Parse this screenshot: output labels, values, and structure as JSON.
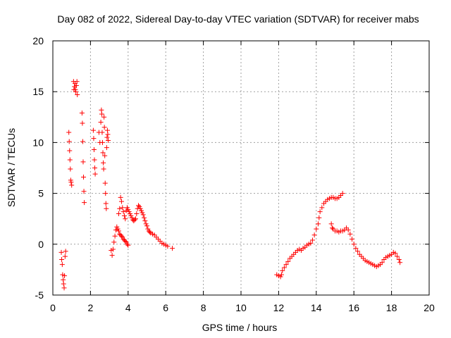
{
  "chart_data": {
    "type": "scatter",
    "title": "Day 082 of 2022, Sidereal Day-to-day VTEC variation (SDTVAR) for receiver mabs",
    "xlabel": "GPS time / hours",
    "ylabel": "SDTVAR / TECUs",
    "xlim": [
      0,
      20
    ],
    "ylim": [
      -5,
      20
    ],
    "x_ticks": [
      "0",
      "2",
      "4",
      "6",
      "8",
      "10",
      "12",
      "14",
      "16",
      "18",
      "20"
    ],
    "y_ticks": [
      "-5",
      "0",
      "5",
      "10",
      "15",
      "20"
    ],
    "grid": true,
    "legend": "none",
    "marker": "+",
    "color": "#ff0000",
    "series": [
      {
        "name": "SDTVAR",
        "points": [
          [
            0.45,
            -0.8
          ],
          [
            0.47,
            -1.5
          ],
          [
            0.5,
            -2.0
          ],
          [
            0.52,
            -3.0
          ],
          [
            0.55,
            -3.5
          ],
          [
            0.57,
            -3.9
          ],
          [
            0.6,
            -4.3
          ],
          [
            0.62,
            -3.1
          ],
          [
            0.65,
            -1.2
          ],
          [
            0.68,
            -0.7
          ],
          [
            0.85,
            11.0
          ],
          [
            0.87,
            10.1
          ],
          [
            0.89,
            9.2
          ],
          [
            0.91,
            8.3
          ],
          [
            0.93,
            7.4
          ],
          [
            0.95,
            6.3
          ],
          [
            0.97,
            6.1
          ],
          [
            1.0,
            5.8
          ],
          [
            1.1,
            16.0
          ],
          [
            1.12,
            15.2
          ],
          [
            1.15,
            15.5
          ],
          [
            1.18,
            15.8
          ],
          [
            1.2,
            15.2
          ],
          [
            1.22,
            15.0
          ],
          [
            1.25,
            15.6
          ],
          [
            1.28,
            16.0
          ],
          [
            1.3,
            14.7
          ],
          [
            1.55,
            12.9
          ],
          [
            1.57,
            11.9
          ],
          [
            1.59,
            10.1
          ],
          [
            1.61,
            8.1
          ],
          [
            1.63,
            6.6
          ],
          [
            1.65,
            5.2
          ],
          [
            1.67,
            4.1
          ],
          [
            2.15,
            11.2
          ],
          [
            2.17,
            10.4
          ],
          [
            2.19,
            9.3
          ],
          [
            2.21,
            8.3
          ],
          [
            2.23,
            7.5
          ],
          [
            2.25,
            6.9
          ],
          [
            2.45,
            11.0
          ],
          [
            2.5,
            10.0
          ],
          [
            2.55,
            12.0
          ],
          [
            2.58,
            13.2
          ],
          [
            2.6,
            12.8
          ],
          [
            2.62,
            11.0
          ],
          [
            2.64,
            10.0
          ],
          [
            2.66,
            9.0
          ],
          [
            2.68,
            8.0
          ],
          [
            2.7,
            7.4
          ],
          [
            2.72,
            12.5
          ],
          [
            2.74,
            11.5
          ],
          [
            2.76,
            8.7
          ],
          [
            2.78,
            6.0
          ],
          [
            2.8,
            5.0
          ],
          [
            2.82,
            4.0
          ],
          [
            2.84,
            3.5
          ],
          [
            2.86,
            9.5
          ],
          [
            2.88,
            10.5
          ],
          [
            2.9,
            11.2
          ],
          [
            2.92,
            10.8
          ],
          [
            2.94,
            10.2
          ],
          [
            3.1,
            -0.6
          ],
          [
            3.15,
            -1.1
          ],
          [
            3.2,
            -0.5
          ],
          [
            3.25,
            0.2
          ],
          [
            3.3,
            0.8
          ],
          [
            3.35,
            1.4
          ],
          [
            3.4,
            1.7
          ],
          [
            3.45,
            1.5
          ],
          [
            3.5,
            1.3
          ],
          [
            3.55,
            1.0
          ],
          [
            3.6,
            0.9
          ],
          [
            3.65,
            0.8
          ],
          [
            3.7,
            0.7
          ],
          [
            3.75,
            0.5
          ],
          [
            3.8,
            0.4
          ],
          [
            3.85,
            0.3
          ],
          [
            3.9,
            0.2
          ],
          [
            3.95,
            0.0
          ],
          [
            4.0,
            -0.1
          ],
          [
            3.5,
            3.0
          ],
          [
            3.55,
            3.5
          ],
          [
            3.6,
            4.6
          ],
          [
            3.65,
            4.2
          ],
          [
            3.7,
            3.6
          ],
          [
            3.75,
            3.2
          ],
          [
            3.8,
            2.8
          ],
          [
            3.85,
            2.5
          ],
          [
            3.9,
            3.3
          ],
          [
            3.95,
            3.6
          ],
          [
            4.0,
            3.4
          ],
          [
            4.05,
            3.2
          ],
          [
            4.1,
            3.0
          ],
          [
            4.15,
            2.8
          ],
          [
            4.2,
            2.6
          ],
          [
            4.25,
            2.4
          ],
          [
            4.3,
            2.3
          ],
          [
            4.35,
            2.4
          ],
          [
            4.4,
            2.5
          ],
          [
            4.45,
            3.0
          ],
          [
            4.5,
            3.5
          ],
          [
            4.55,
            3.8
          ],
          [
            4.6,
            3.7
          ],
          [
            4.65,
            3.5
          ],
          [
            4.7,
            3.3
          ],
          [
            4.75,
            3.1
          ],
          [
            4.8,
            2.9
          ],
          [
            4.85,
            2.6
          ],
          [
            4.9,
            2.3
          ],
          [
            4.95,
            2.0
          ],
          [
            5.0,
            1.8
          ],
          [
            5.05,
            1.5
          ],
          [
            5.1,
            1.3
          ],
          [
            5.15,
            1.2
          ],
          [
            5.2,
            1.1
          ],
          [
            5.3,
            1.0
          ],
          [
            5.4,
            0.9
          ],
          [
            5.5,
            0.7
          ],
          [
            5.6,
            0.5
          ],
          [
            5.7,
            0.3
          ],
          [
            5.8,
            0.1
          ],
          [
            5.9,
            0.0
          ],
          [
            6.0,
            -0.1
          ],
          [
            6.1,
            -0.2
          ],
          [
            6.35,
            -0.4
          ],
          [
            11.9,
            -3.0
          ],
          [
            12.0,
            -3.1
          ],
          [
            12.1,
            -3.2
          ],
          [
            12.15,
            -3.0
          ],
          [
            12.2,
            -2.6
          ],
          [
            12.3,
            -2.3
          ],
          [
            12.4,
            -2.0
          ],
          [
            12.5,
            -1.7
          ],
          [
            12.6,
            -1.4
          ],
          [
            12.7,
            -1.2
          ],
          [
            12.8,
            -1.0
          ],
          [
            12.9,
            -0.8
          ],
          [
            13.0,
            -0.6
          ],
          [
            13.1,
            -0.5
          ],
          [
            13.2,
            -0.6
          ],
          [
            13.3,
            -0.4
          ],
          [
            13.4,
            -0.3
          ],
          [
            13.5,
            -0.1
          ],
          [
            13.6,
            0.0
          ],
          [
            13.7,
            0.1
          ],
          [
            13.8,
            0.4
          ],
          [
            13.9,
            0.9
          ],
          [
            14.0,
            1.5
          ],
          [
            14.1,
            2.0
          ],
          [
            14.15,
            2.6
          ],
          [
            14.2,
            3.2
          ],
          [
            14.3,
            3.6
          ],
          [
            14.4,
            4.0
          ],
          [
            14.5,
            4.2
          ],
          [
            14.6,
            4.4
          ],
          [
            14.7,
            4.5
          ],
          [
            14.8,
            4.6
          ],
          [
            14.9,
            4.6
          ],
          [
            15.0,
            4.5
          ],
          [
            15.1,
            4.5
          ],
          [
            15.2,
            4.6
          ],
          [
            15.3,
            4.8
          ],
          [
            15.4,
            5.0
          ],
          [
            14.8,
            2.0
          ],
          [
            14.85,
            1.6
          ],
          [
            14.9,
            1.5
          ],
          [
            15.0,
            1.3
          ],
          [
            15.1,
            1.3
          ],
          [
            15.2,
            1.2
          ],
          [
            15.3,
            1.3
          ],
          [
            15.4,
            1.3
          ],
          [
            15.5,
            1.4
          ],
          [
            15.6,
            1.6
          ],
          [
            15.7,
            1.4
          ],
          [
            15.8,
            1.0
          ],
          [
            15.9,
            0.5
          ],
          [
            16.0,
            0.0
          ],
          [
            16.1,
            -0.4
          ],
          [
            16.2,
            -0.7
          ],
          [
            16.3,
            -1.0
          ],
          [
            16.4,
            -1.2
          ],
          [
            16.5,
            -1.4
          ],
          [
            16.6,
            -1.6
          ],
          [
            16.7,
            -1.7
          ],
          [
            16.8,
            -1.8
          ],
          [
            16.9,
            -1.9
          ],
          [
            17.0,
            -2.0
          ],
          [
            17.1,
            -2.1
          ],
          [
            17.2,
            -2.2
          ],
          [
            17.3,
            -2.1
          ],
          [
            17.4,
            -2.0
          ],
          [
            17.5,
            -1.8
          ],
          [
            17.6,
            -1.5
          ],
          [
            17.7,
            -1.3
          ],
          [
            17.8,
            -1.2
          ],
          [
            17.9,
            -1.1
          ],
          [
            18.0,
            -1.0
          ],
          [
            18.1,
            -0.8
          ],
          [
            18.2,
            -0.9
          ],
          [
            18.3,
            -1.2
          ],
          [
            18.4,
            -1.5
          ],
          [
            18.45,
            -1.8
          ]
        ]
      }
    ]
  }
}
